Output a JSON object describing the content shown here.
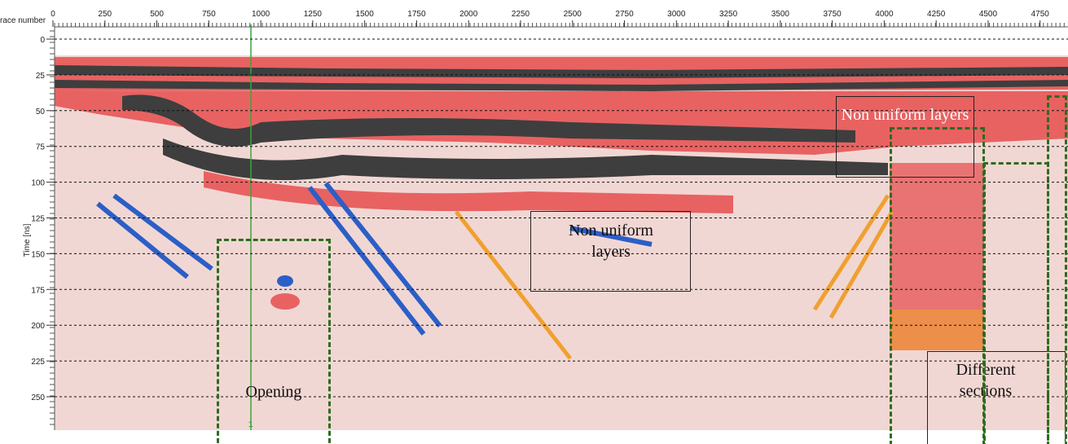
{
  "x_axis": {
    "label": "race number",
    "ticks": [
      0,
      250,
      500,
      750,
      1000,
      1250,
      1500,
      1750,
      2000,
      2250,
      2500,
      2750,
      3000,
      3250,
      3500,
      3750,
      4000,
      4250,
      4500,
      4750
    ]
  },
  "y_axis": {
    "label": "Time [ns]",
    "ticks": [
      0,
      25,
      50,
      75,
      100,
      125,
      150,
      175,
      200,
      225,
      250
    ]
  },
  "marker": "1",
  "annotations": {
    "layers_right": "Non uniform layers",
    "layers_middle": "Non uniform layers",
    "opening": "Opening",
    "sections": "Different sections"
  }
}
